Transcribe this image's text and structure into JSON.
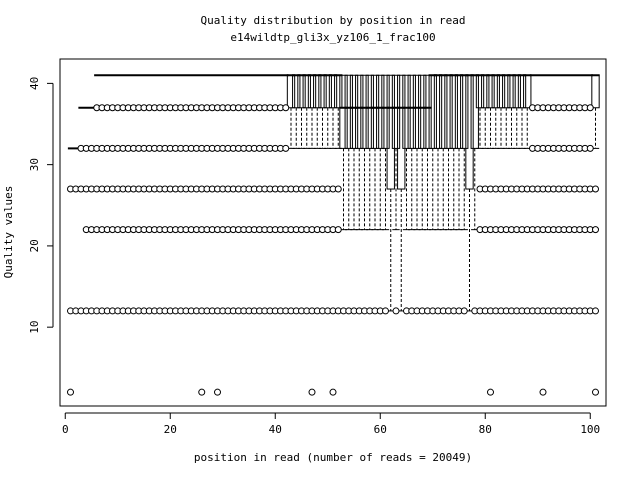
{
  "chart_data": {
    "type": "boxplot",
    "title": "Quality distribution by position in read",
    "subtitle": "e14wildtp_gli3x_yz106_1_frac100",
    "xlabel": "position in read (number of reads = 20049)",
    "ylabel": "Quality values",
    "xlim": [
      -1,
      103
    ],
    "ylim": [
      0.3,
      43
    ],
    "xticks": [
      0,
      20,
      40,
      60,
      80,
      100
    ],
    "yticks": [
      10,
      20,
      30,
      40
    ],
    "grid": false,
    "legend": "none",
    "colors": {
      "stroke": "#000000",
      "background": "#ffffff"
    },
    "box_groups": [
      {
        "from": 43,
        "to": 52,
        "q1": 37,
        "median": 41,
        "q3": 41,
        "lower_whisker": 32,
        "upper_whisker": 41
      },
      {
        "from": 53,
        "to": 61,
        "q1": 32,
        "median": 37,
        "q3": 41,
        "lower_whisker": 22,
        "upper_whisker": 41
      },
      {
        "from": 62,
        "to": 62,
        "q1": 27,
        "median": 37,
        "q3": 41,
        "lower_whisker": 12,
        "upper_whisker": 41
      },
      {
        "from": 63,
        "to": 63,
        "q1": 32,
        "median": 37,
        "q3": 41,
        "lower_whisker": 22,
        "upper_whisker": 41
      },
      {
        "from": 64,
        "to": 64,
        "q1": 27,
        "median": 37,
        "q3": 41,
        "lower_whisker": 12,
        "upper_whisker": 41
      },
      {
        "from": 65,
        "to": 69,
        "q1": 32,
        "median": 37,
        "q3": 41,
        "lower_whisker": 22,
        "upper_whisker": 41
      },
      {
        "from": 70,
        "to": 76,
        "q1": 32,
        "median": 41,
        "q3": 41,
        "lower_whisker": 22,
        "upper_whisker": 41
      },
      {
        "from": 77,
        "to": 77,
        "q1": 27,
        "median": 41,
        "q3": 41,
        "lower_whisker": 12,
        "upper_whisker": 41
      },
      {
        "from": 78,
        "to": 78,
        "q1": 32,
        "median": 41,
        "q3": 41,
        "lower_whisker": 22,
        "upper_whisker": 41
      },
      {
        "from": 79,
        "to": 88,
        "q1": 37,
        "median": 41,
        "q3": 41,
        "lower_whisker": 32,
        "upper_whisker": 41
      },
      {
        "from": 101,
        "to": 101,
        "q1": 37,
        "median": 41,
        "q3": 41,
        "lower_whisker": 32,
        "upper_whisker": 41
      }
    ],
    "flat_medians": [
      {
        "from": 6,
        "to": 42,
        "value": 41
      },
      {
        "from": 89,
        "to": 100,
        "value": 41
      },
      {
        "from": 3,
        "to": 5,
        "value": 37
      },
      {
        "from": 1,
        "to": 2,
        "value": 32
      }
    ],
    "outlier_runs": [
      {
        "from": 6,
        "to": 42,
        "value": 37
      },
      {
        "from": 89,
        "to": 100,
        "value": 37
      },
      {
        "from": 3,
        "to": 42,
        "value": 32
      },
      {
        "from": 89,
        "to": 100,
        "value": 32
      },
      {
        "from": 1,
        "to": 52,
        "value": 27
      },
      {
        "from": 79,
        "to": 101,
        "value": 27
      },
      {
        "from": 4,
        "to": 52,
        "value": 22
      },
      {
        "from": 79,
        "to": 101,
        "value": 22
      },
      {
        "from": 1,
        "to": 61,
        "value": 12
      },
      {
        "from": 63,
        "to": 63,
        "value": 12
      },
      {
        "from": 65,
        "to": 76,
        "value": 12
      },
      {
        "from": 78,
        "to": 101,
        "value": 12
      }
    ],
    "outliers_low": [
      {
        "x": 1,
        "y": 2
      },
      {
        "x": 26,
        "y": 2
      },
      {
        "x": 29,
        "y": 2
      },
      {
        "x": 47,
        "y": 2
      },
      {
        "x": 51,
        "y": 2
      },
      {
        "x": 81,
        "y": 2
      },
      {
        "x": 91,
        "y": 2
      },
      {
        "x": 101,
        "y": 2
      }
    ]
  }
}
